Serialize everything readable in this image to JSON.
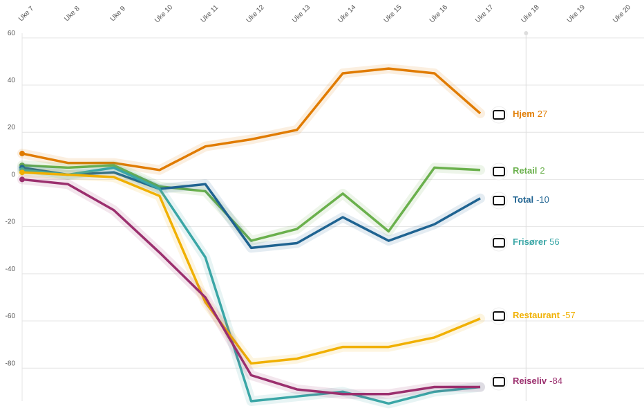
{
  "chart_data": {
    "type": "line",
    "categories": [
      "Uke 7",
      "Uke 8",
      "Uke 9",
      "Uke 10",
      "Uke 11",
      "Uke 12",
      "Uke 13",
      "Uke 14",
      "Uke 15",
      "Uke 16",
      "Uke 17",
      "Uke 18",
      "Uke 19",
      "Uke 20"
    ],
    "ylim": [
      -94,
      62
    ],
    "yticks": [
      -80,
      -60,
      -40,
      -20,
      0,
      20,
      40,
      60
    ],
    "grid": true,
    "series": [
      {
        "name": "Hjem",
        "color": "#e07b00",
        "label_value": 27,
        "values": [
          11,
          7,
          7,
          4,
          14,
          17,
          21,
          45,
          47,
          45,
          28,
          null,
          null,
          null
        ]
      },
      {
        "name": "Retail",
        "color": "#6ab04c",
        "label_value": 2,
        "values": [
          6,
          5,
          6,
          -3,
          -5,
          -26,
          -21,
          -6,
          -22,
          5,
          4,
          null,
          null,
          null
        ]
      },
      {
        "name": "Total",
        "color": "#1f6391",
        "label_value": -10,
        "values": [
          5,
          2,
          3,
          -4,
          -2,
          -29,
          -27,
          -16,
          -26,
          -19,
          -8,
          null,
          null,
          null
        ]
      },
      {
        "name": "Frisører",
        "color": "#3aa6a6",
        "label_value": 56,
        "values": [
          4,
          2,
          5,
          -4,
          -33,
          -94,
          -92,
          -90,
          -95,
          -90,
          -88,
          null,
          null,
          null
        ]
      },
      {
        "name": "Restaurant",
        "color": "#f0b000",
        "label_value": -57,
        "values": [
          3,
          2,
          1,
          -7,
          -52,
          -78,
          -76,
          -71,
          -71,
          -67,
          -59,
          null,
          null,
          null
        ]
      },
      {
        "name": "Reiseliv",
        "color": "#9b2f6e",
        "label_value": -84,
        "values": [
          0,
          -2,
          -13,
          -31,
          -50,
          -83,
          -89,
          -91,
          -91,
          -88,
          -88,
          null,
          null,
          null
        ]
      }
    ]
  }
}
